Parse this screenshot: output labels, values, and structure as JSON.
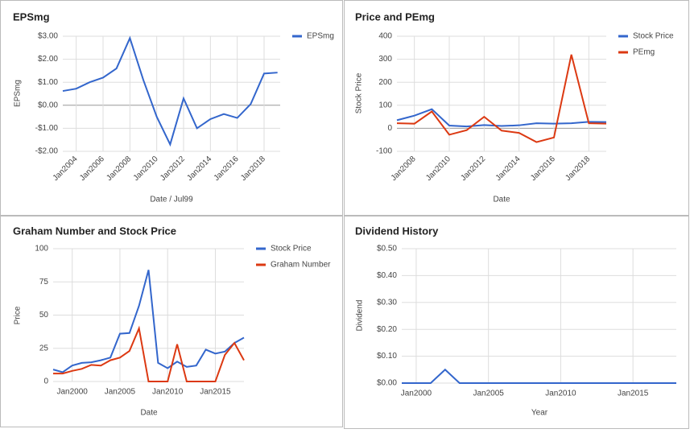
{
  "chart_data": [
    {
      "type": "line",
      "title": "EPSmg",
      "x_label": "Date / Jul99",
      "y_label": "EPSmg",
      "legend": "right",
      "x": [
        2003,
        2004,
        2005,
        2006,
        2007,
        2008,
        2009,
        2010,
        2011,
        2012,
        2013,
        2014,
        2015,
        2016,
        2017,
        2018,
        2019
      ],
      "series": [
        {
          "name": "EPSmg",
          "color": "#3366cc",
          "values": [
            0.62,
            0.72,
            1.0,
            1.2,
            1.6,
            2.92,
            1.1,
            -0.5,
            -1.7,
            0.3,
            -1.0,
            -0.6,
            -0.38,
            -0.55,
            0.05,
            1.38,
            1.42
          ]
        }
      ],
      "xlim": [
        2003,
        2019.2
      ],
      "xticks": [
        {
          "value": 2004,
          "label": "Jan2004"
        },
        {
          "value": 2006,
          "label": "Jan2006"
        },
        {
          "value": 2008,
          "label": "Jan2008"
        },
        {
          "value": 2010,
          "label": "Jan2010"
        },
        {
          "value": 2012,
          "label": "Jan2012"
        },
        {
          "value": 2014,
          "label": "Jan2014"
        },
        {
          "value": 2016,
          "label": "Jan2016"
        },
        {
          "value": 2018,
          "label": "Jan2018"
        }
      ],
      "ylim": [
        -2,
        3
      ],
      "yticks": [
        {
          "value": -2,
          "label": "-$2.00"
        },
        {
          "value": -1,
          "label": "-$1.00"
        },
        {
          "value": 0,
          "label": "$0.00"
        },
        {
          "value": 1,
          "label": "$1.00"
        },
        {
          "value": 2,
          "label": "$2.00"
        },
        {
          "value": 3,
          "label": "$3.00"
        }
      ],
      "grid": true
    },
    {
      "type": "line",
      "title": "Price and PEmg",
      "x_label": "Date",
      "y_label": "Stock Price",
      "legend": "right",
      "x": [
        2007,
        2008,
        2009,
        2010,
        2011,
        2012,
        2013,
        2014,
        2015,
        2016,
        2017,
        2018,
        2019
      ],
      "series": [
        {
          "name": "Stock Price",
          "color": "#3366cc",
          "values": [
            35,
            55,
            83,
            12,
            8,
            14,
            10,
            13,
            22,
            20,
            22,
            28,
            27
          ]
        },
        {
          "name": "PEmg",
          "color": "#dc3912",
          "values": [
            22,
            20,
            73,
            -28,
            -8,
            50,
            -10,
            -20,
            -60,
            -40,
            320,
            22,
            20
          ]
        }
      ],
      "xlim": [
        2007,
        2019
      ],
      "xticks": [
        {
          "value": 2008,
          "label": "Jan2008"
        },
        {
          "value": 2010,
          "label": "Jan2010"
        },
        {
          "value": 2012,
          "label": "Jan2012"
        },
        {
          "value": 2014,
          "label": "Jan2014"
        },
        {
          "value": 2016,
          "label": "Jan2016"
        },
        {
          "value": 2018,
          "label": "Jan2018"
        }
      ],
      "ylim": [
        -100,
        400
      ],
      "yticks": [
        -100,
        0,
        100,
        200,
        300,
        400
      ],
      "grid": true
    },
    {
      "type": "line",
      "title": "Graham Number and Stock Price",
      "x_label": "Date",
      "y_label": "Price",
      "legend": "right",
      "x": [
        1998,
        1999,
        2000,
        2001,
        2002,
        2003,
        2004,
        2005,
        2006,
        2007,
        2008,
        2009,
        2010,
        2011,
        2012,
        2013,
        2014,
        2015,
        2016,
        2017,
        2018
      ],
      "series": [
        {
          "name": "Stock Price",
          "color": "#3366cc",
          "values": [
            9,
            7,
            12,
            14,
            14.5,
            16,
            18,
            36,
            36.5,
            57,
            84,
            14,
            10,
            15,
            11,
            12,
            24,
            21,
            22.5,
            29,
            33
          ]
        },
        {
          "name": "Graham Number",
          "color": "#dc3912",
          "values": [
            6,
            6,
            8,
            9.5,
            12.5,
            12,
            16,
            18,
            23,
            40,
            0,
            0,
            0,
            28,
            0,
            0,
            0,
            0,
            20,
            29,
            16
          ]
        }
      ],
      "xlim": [
        1998,
        2018
      ],
      "xticks": [
        {
          "value": 2000,
          "label": "Jan2000"
        },
        {
          "value": 2005,
          "label": "Jan2005"
        },
        {
          "value": 2010,
          "label": "Jan2010"
        },
        {
          "value": 2015,
          "label": "Jan2015"
        }
      ],
      "ylim": [
        0,
        100
      ],
      "yticks": [
        0,
        25,
        50,
        75,
        100
      ],
      "grid": true
    },
    {
      "type": "line",
      "title": "Dividend History",
      "x_label": "Year",
      "y_label": "Dividend",
      "x": [
        1999,
        2000,
        2001,
        2002,
        2003,
        2004,
        2005,
        2006,
        2007,
        2008,
        2009,
        2010,
        2011,
        2012,
        2013,
        2014,
        2015,
        2016,
        2017,
        2018
      ],
      "series": [
        {
          "color": "#3366cc",
          "values": [
            0,
            0,
            0,
            0.05,
            0,
            0,
            0,
            0,
            0,
            0,
            0,
            0,
            0,
            0,
            0,
            0,
            0,
            0,
            0,
            0
          ]
        }
      ],
      "xlim": [
        1999,
        2018
      ],
      "xticks": [
        {
          "value": 2000,
          "label": "Jan2000"
        },
        {
          "value": 2005,
          "label": "Jan2005"
        },
        {
          "value": 2010,
          "label": "Jan2010"
        },
        {
          "value": 2015,
          "label": "Jan2015"
        }
      ],
      "ylim": [
        0,
        0.5
      ],
      "yticks": [
        {
          "value": 0,
          "label": "$0.00"
        },
        {
          "value": 0.1,
          "label": "$0.10"
        },
        {
          "value": 0.2,
          "label": "$0.20"
        },
        {
          "value": 0.3,
          "label": "$0.30"
        },
        {
          "value": 0.4,
          "label": "$0.40"
        },
        {
          "value": 0.5,
          "label": "$0.50"
        }
      ],
      "grid": true
    }
  ]
}
